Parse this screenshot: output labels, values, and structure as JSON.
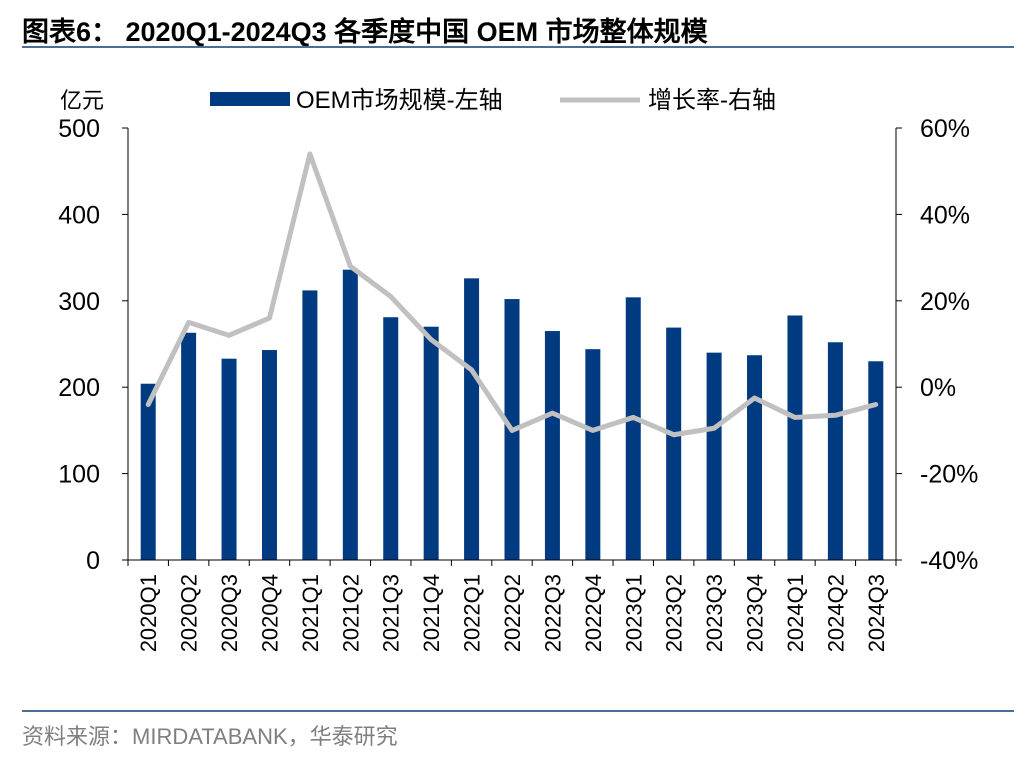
{
  "page": {
    "title": "图表6：  2020Q1-2024Q3 各季度中国 OEM 市场整体规模",
    "source": "资料来源：MIRDATABANK，华泰研究"
  },
  "colors": {
    "bar": "#003a80",
    "line": "#c0c0c0",
    "rule": "#4a6e96",
    "source_text": "#7f7f7f"
  },
  "chart_data": {
    "type": "bar",
    "title": "2020Q1-2024Q3 各季度中国 OEM 市场整体规模",
    "left_unit": "亿元",
    "categories": [
      "2020Q1",
      "2020Q2",
      "2020Q3",
      "2020Q4",
      "2021Q1",
      "2021Q2",
      "2021Q3",
      "2021Q4",
      "2022Q1",
      "2022Q2",
      "2022Q3",
      "2022Q4",
      "2023Q1",
      "2023Q2",
      "2023Q3",
      "2023Q4",
      "2024Q1",
      "2024Q2",
      "2024Q3"
    ],
    "series": [
      {
        "name": "OEM市场规模-左轴",
        "type": "bar",
        "axis": "left",
        "values": [
          204,
          263,
          233,
          243,
          312,
          336,
          281,
          270,
          326,
          302,
          265,
          244,
          304,
          269,
          240,
          237,
          283,
          252,
          230
        ]
      },
      {
        "name": "增长率-右轴",
        "type": "line",
        "axis": "right",
        "values": [
          -4,
          15,
          12,
          16,
          54,
          28,
          21,
          11,
          4,
          -10,
          -6,
          -10,
          -7,
          -11,
          -9.5,
          -2.5,
          -7,
          -6.5,
          -4
        ]
      }
    ],
    "left_axis": {
      "min": 0,
      "max": 500,
      "ticks": [
        0,
        100,
        200,
        300,
        400,
        500
      ],
      "tick_labels": [
        "0",
        "100",
        "200",
        "300",
        "400",
        "500"
      ]
    },
    "right_axis": {
      "min": -40,
      "max": 60,
      "ticks": [
        -40,
        -20,
        0,
        20,
        40,
        60
      ],
      "tick_labels": [
        "-40%",
        "-20%",
        "0%",
        "20%",
        "40%",
        "60%"
      ]
    },
    "legend_position": "top-center",
    "grid": false
  }
}
